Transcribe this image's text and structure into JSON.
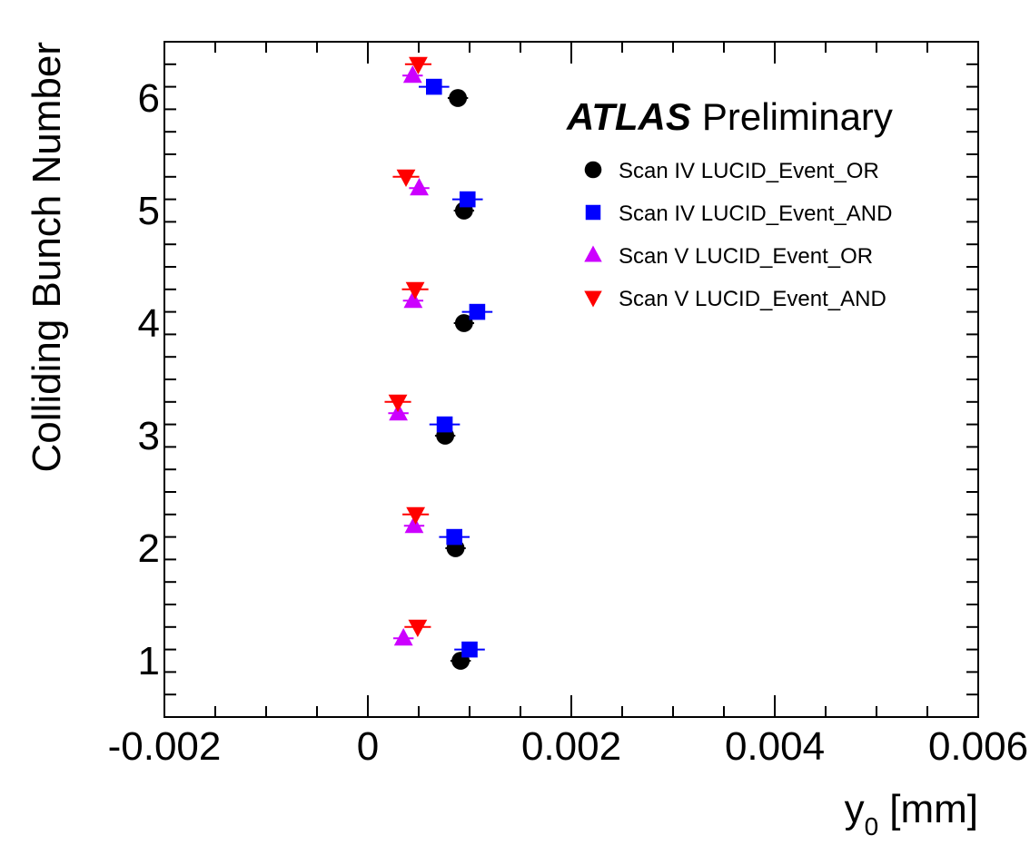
{
  "chart_data": {
    "type": "scatter",
    "title": "",
    "xlabel": "y",
    "xlabel_subscript": "0",
    "xlabel_unit": "[mm]",
    "ylabel": "Colliding Bunch Number",
    "xlim": [
      -0.002,
      0.006
    ],
    "ylim": [
      0.5,
      6.5
    ],
    "x_ticks": [
      -0.002,
      0,
      0.002,
      0.004,
      0.006
    ],
    "x_tick_labels": [
      "-0.002",
      "0",
      "0.002",
      "0.004",
      "0.006"
    ],
    "y_ticks": [
      1,
      2,
      3,
      4,
      5,
      6
    ],
    "y_tick_labels": [
      "1",
      "2",
      "3",
      "4",
      "5",
      "6"
    ],
    "grid": false,
    "legend_position": "top-right",
    "annotation": {
      "bold": "ATLAS",
      "text": "Preliminary"
    },
    "series": [
      {
        "name": "Scan IV LUCID_Event_OR",
        "marker": "circle",
        "color": "#000000",
        "points": [
          {
            "y": 1,
            "x": 0.000912,
            "xerr": 0.0001
          },
          {
            "y": 2,
            "x": 0.000862,
            "xerr": 0.0001
          },
          {
            "y": 3,
            "x": 0.00076,
            "xerr": 0.0001
          },
          {
            "y": 4,
            "x": 0.000945,
            "xerr": 0.0001
          },
          {
            "y": 5,
            "x": 0.000945,
            "xerr": 0.0001
          },
          {
            "y": 6,
            "x": 0.000885,
            "xerr": 0.0001
          }
        ]
      },
      {
        "name": "Scan IV LUCID_Event_AND",
        "marker": "square",
        "color": "#0000ff",
        "points": [
          {
            "y": 1.1,
            "x": 0.001,
            "xerr": 0.00015
          },
          {
            "y": 2.1,
            "x": 0.00085,
            "xerr": 0.00015
          },
          {
            "y": 3.1,
            "x": 0.000755,
            "xerr": 0.00015
          },
          {
            "y": 4.1,
            "x": 0.001075,
            "xerr": 0.00015
          },
          {
            "y": 5.1,
            "x": 0.00098,
            "xerr": 0.00015
          },
          {
            "y": 6.1,
            "x": 0.00065,
            "xerr": 0.00015
          }
        ]
      },
      {
        "name": "Scan V LUCID_Event_OR",
        "marker": "triangle-up",
        "color": "#cc00ff",
        "points": [
          {
            "y": 1.2,
            "x": 0.00035,
            "xerr": 0.0001
          },
          {
            "y": 2.2,
            "x": 0.000455,
            "xerr": 0.0001
          },
          {
            "y": 3.2,
            "x": 0.0003,
            "xerr": 0.0001
          },
          {
            "y": 4.2,
            "x": 0.000445,
            "xerr": 0.0001
          },
          {
            "y": 5.2,
            "x": 0.000505,
            "xerr": 0.0001
          },
          {
            "y": 6.2,
            "x": 0.00044,
            "xerr": 0.0001
          }
        ]
      },
      {
        "name": "Scan V LUCID_Event_AND",
        "marker": "triangle-down",
        "color": "#ff0000",
        "points": [
          {
            "y": 1.3,
            "x": 0.00049,
            "xerr": 0.00013
          },
          {
            "y": 2.3,
            "x": 0.00047,
            "xerr": 0.00013
          },
          {
            "y": 3.3,
            "x": 0.000295,
            "xerr": 0.00013
          },
          {
            "y": 4.3,
            "x": 0.000465,
            "xerr": 0.00013
          },
          {
            "y": 5.3,
            "x": 0.000375,
            "xerr": 0.00013
          },
          {
            "y": 6.3,
            "x": 0.000495,
            "xerr": 0.00013
          }
        ]
      }
    ]
  }
}
